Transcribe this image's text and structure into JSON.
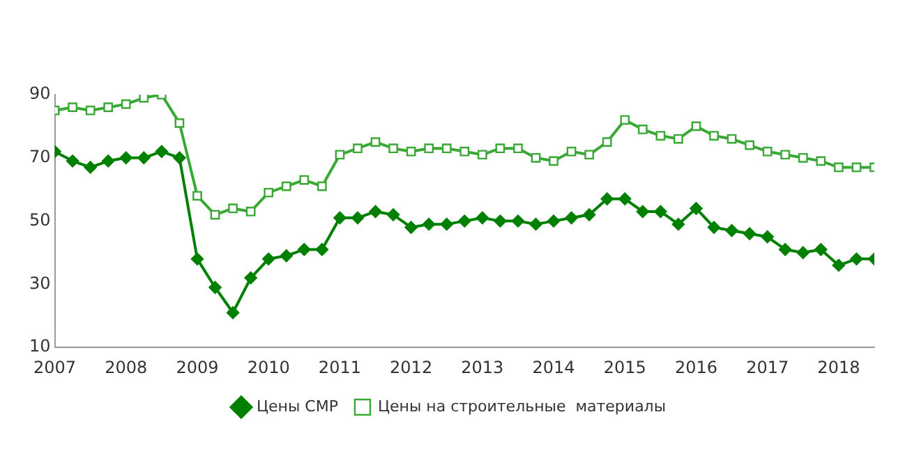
{
  "chart_data": {
    "type": "line",
    "x": [
      2007,
      2007.25,
      2007.5,
      2007.75,
      2008,
      2008.25,
      2008.5,
      2008.75,
      2009,
      2009.25,
      2009.5,
      2009.75,
      2010,
      2010.25,
      2010.5,
      2010.75,
      2011,
      2011.25,
      2011.5,
      2011.75,
      2012,
      2012.25,
      2012.5,
      2012.75,
      2013,
      2013.25,
      2013.5,
      2013.75,
      2014,
      2014.25,
      2014.5,
      2014.75,
      2015,
      2015.25,
      2015.5,
      2015.75,
      2016,
      2016.25,
      2016.5,
      2016.75,
      2017,
      2017.25,
      2017.5,
      2017.75,
      2018,
      2018.25,
      2018.5
    ],
    "series": [
      {
        "name": "Цены СМР",
        "color": "#008000",
        "marker": "diamond",
        "values": [
          72,
          69,
          67,
          69,
          70,
          70,
          72,
          70,
          38,
          29,
          21,
          32,
          38,
          39,
          41,
          41,
          51,
          51,
          53,
          52,
          48,
          49,
          49,
          50,
          51,
          50,
          50,
          49,
          50,
          51,
          52,
          57,
          57,
          53,
          53,
          49,
          54,
          48,
          47,
          46,
          45,
          41,
          40,
          41,
          36,
          38,
          38
        ]
      },
      {
        "name": "Цены на строительные  материалы",
        "color": "#3aa835",
        "marker": "square",
        "values": [
          85,
          86,
          85,
          86,
          87,
          89,
          90,
          81,
          58,
          52,
          54,
          53,
          59,
          61,
          63,
          61,
          71,
          73,
          75,
          73,
          72,
          73,
          73,
          72,
          71,
          73,
          73,
          70,
          69,
          72,
          71,
          75,
          82,
          79,
          77,
          76,
          80,
          77,
          76,
          74,
          72,
          71,
          70,
          69,
          67,
          67,
          67
        ]
      }
    ],
    "xlim": [
      2007,
      2018.5
    ],
    "xticks": [
      2007,
      2008,
      2009,
      2010,
      2011,
      2012,
      2013,
      2014,
      2015,
      2016,
      2017,
      2018
    ],
    "ylim": [
      10,
      90
    ],
    "yticks": [
      10,
      30,
      50,
      70,
      90
    ],
    "grid": false,
    "legend": "bottom",
    "line_style": "solid"
  }
}
